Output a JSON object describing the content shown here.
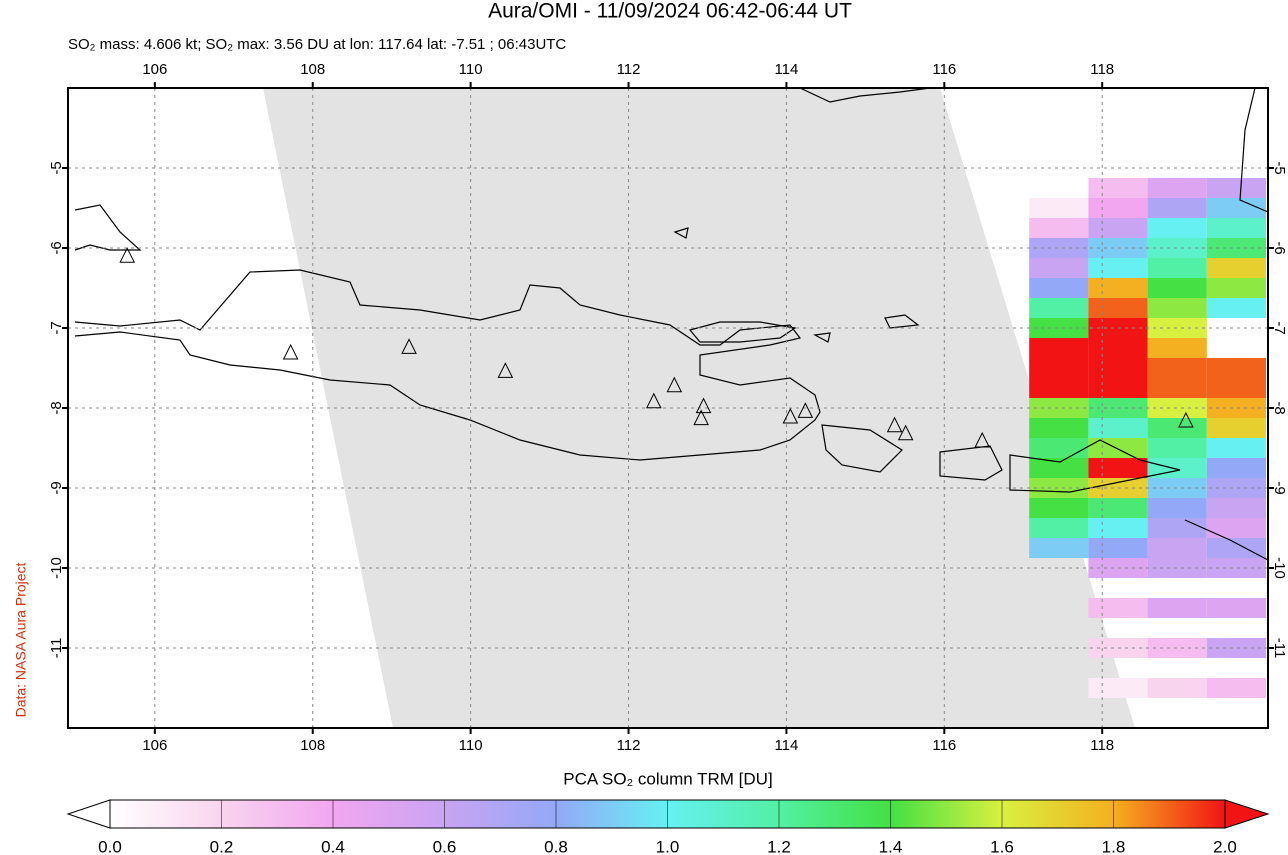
{
  "chart_data": {
    "type": "map",
    "title": "Aura/OMI - 11/09/2024 06:42-06:44 UT",
    "subtitle": "SO₂ mass: 4.606 kt; SO₂ max: 3.56 DU at lon: 117.64 lat: -7.51 ; 06:43UTC",
    "credit": "Data: NASA Aura Project",
    "colorbar_label": "PCA SO₂ column TRM [DU]",
    "xlim": [
      104.9,
      120.1
    ],
    "ylim": [
      -12,
      -4
    ],
    "xticks": [
      106,
      108,
      110,
      112,
      114,
      116,
      118
    ],
    "yticks": [
      -5,
      -6,
      -7,
      -8,
      -9,
      -10,
      -11
    ],
    "grid": true,
    "colormap": [
      "#ffffff",
      "#f8d4ee",
      "#f2a6f0",
      "#c8a4f2",
      "#94a8f8",
      "#66f0f2",
      "#52f0a4",
      "#44e044",
      "#d8f040",
      "#f4b020",
      "#f21414"
    ],
    "colorbar_ticks": [
      {
        "value": 0,
        "label": "0.0"
      },
      {
        "value": 0.2,
        "label": "0.2"
      },
      {
        "value": 0.4,
        "label": "0.4"
      },
      {
        "value": 0.6,
        "label": "0.6"
      },
      {
        "value": 0.8,
        "label": "0.8"
      },
      {
        "value": 1,
        "label": "1.0"
      },
      {
        "value": 1.2,
        "label": "1.2"
      },
      {
        "value": 1.4,
        "label": "1.4"
      },
      {
        "value": 1.6,
        "label": "1.6"
      },
      {
        "value": 1.8,
        "label": "1.8"
      },
      {
        "value": 2,
        "label": "2.0"
      }
    ],
    "volcanoes": {
      "lon": [
        105.65,
        107.72,
        109.22,
        110.44,
        112.32,
        112.58,
        112.95,
        112.92,
        114.05,
        114.24,
        115.37,
        115.51,
        116.48,
        119.06
      ],
      "lat": [
        -6.09,
        -7.3,
        -7.23,
        -7.53,
        -7.91,
        -7.71,
        -7.97,
        -8.12,
        -8.1,
        -8.03,
        -8.21,
        -8.31,
        -8.4,
        -8.15
      ]
    },
    "so2_rows": [
      {
        "lat": -5.25,
        "lons": [
          118.2,
          118.95,
          119.7
        ],
        "values": [
          0.3,
          0.5,
          0.6
        ]
      },
      {
        "lat": -5.5,
        "lons": [
          117.45,
          118.2,
          118.95,
          119.7
        ],
        "values": [
          0.1,
          0.4,
          0.7,
          0.9
        ]
      },
      {
        "lat": -5.75,
        "lons": [
          117.45,
          118.2,
          118.95,
          119.7
        ],
        "values": [
          0.3,
          0.6,
          1.0,
          1.1
        ]
      },
      {
        "lat": -6.0,
        "lons": [
          117.45,
          118.2,
          118.95,
          119.7
        ],
        "values": [
          0.7,
          0.9,
          1.1,
          1.3
        ]
      },
      {
        "lat": -6.25,
        "lons": [
          117.45,
          118.2,
          118.95,
          119.7
        ],
        "values": [
          0.6,
          1.0,
          1.2,
          1.7
        ]
      },
      {
        "lat": -6.5,
        "lons": [
          117.45,
          118.2,
          118.95,
          119.7
        ],
        "values": [
          0.8,
          1.8,
          1.4,
          1.5
        ]
      },
      {
        "lat": -6.75,
        "lons": [
          117.45,
          118.2,
          118.95,
          119.7
        ],
        "values": [
          1.2,
          1.9,
          1.5,
          1.0
        ]
      },
      {
        "lat": -7.0,
        "lons": [
          117.45,
          118.2,
          118.95
        ],
        "values": [
          1.4,
          2.0,
          1.6
        ]
      },
      {
        "lat": -7.25,
        "lons": [
          117.45,
          118.2,
          118.95
        ],
        "values": [
          2.0,
          2.0,
          1.8
        ]
      },
      {
        "lat": -7.5,
        "lons": [
          117.45,
          118.2,
          118.95,
          119.7
        ],
        "values": [
          2.0,
          2.0,
          1.9,
          1.9
        ]
      },
      {
        "lat": -7.75,
        "lons": [
          117.45,
          118.2,
          118.95,
          119.7
        ],
        "values": [
          2.0,
          2.0,
          1.9,
          1.9
        ]
      },
      {
        "lat": -8.0,
        "lons": [
          117.45,
          118.2,
          118.95,
          119.7
        ],
        "values": [
          1.5,
          1.3,
          1.6,
          1.8
        ]
      },
      {
        "lat": -8.25,
        "lons": [
          117.45,
          118.2,
          118.95,
          119.7
        ],
        "values": [
          1.4,
          1.1,
          1.3,
          1.7
        ]
      },
      {
        "lat": -8.5,
        "lons": [
          117.45,
          118.2,
          118.95,
          119.7
        ],
        "values": [
          1.3,
          1.5,
          1.2,
          1.0
        ]
      },
      {
        "lat": -8.75,
        "lons": [
          117.45,
          118.2,
          118.95,
          119.7
        ],
        "values": [
          1.4,
          2.0,
          1.1,
          0.8
        ]
      },
      {
        "lat": -9.0,
        "lons": [
          117.45,
          118.2,
          118.95,
          119.7
        ],
        "values": [
          1.5,
          1.7,
          0.9,
          0.7
        ]
      },
      {
        "lat": -9.25,
        "lons": [
          117.45,
          118.2,
          118.95,
          119.7
        ],
        "values": [
          1.4,
          1.3,
          0.8,
          0.6
        ]
      },
      {
        "lat": -9.5,
        "lons": [
          117.45,
          118.2,
          118.95,
          119.7
        ],
        "values": [
          1.2,
          1.0,
          0.7,
          0.5
        ]
      },
      {
        "lat": -9.75,
        "lons": [
          117.45,
          118.2,
          118.95,
          119.7
        ],
        "values": [
          0.9,
          0.8,
          0.6,
          0.7
        ]
      },
      {
        "lat": -10.0,
        "lons": [
          118.2,
          118.95,
          119.7
        ],
        "values": [
          0.5,
          0.6,
          0.6
        ]
      },
      {
        "lat": -10.5,
        "lons": [
          118.2,
          118.95,
          119.7
        ],
        "values": [
          0.3,
          0.5,
          0.5
        ]
      },
      {
        "lat": -11.0,
        "lons": [
          118.2,
          118.95,
          119.7
        ],
        "values": [
          0.2,
          0.3,
          0.6
        ]
      },
      {
        "lat": -11.5,
        "lons": [
          118.2,
          118.95,
          119.7
        ],
        "values": [
          0.1,
          0.2,
          0.3
        ]
      }
    ]
  }
}
